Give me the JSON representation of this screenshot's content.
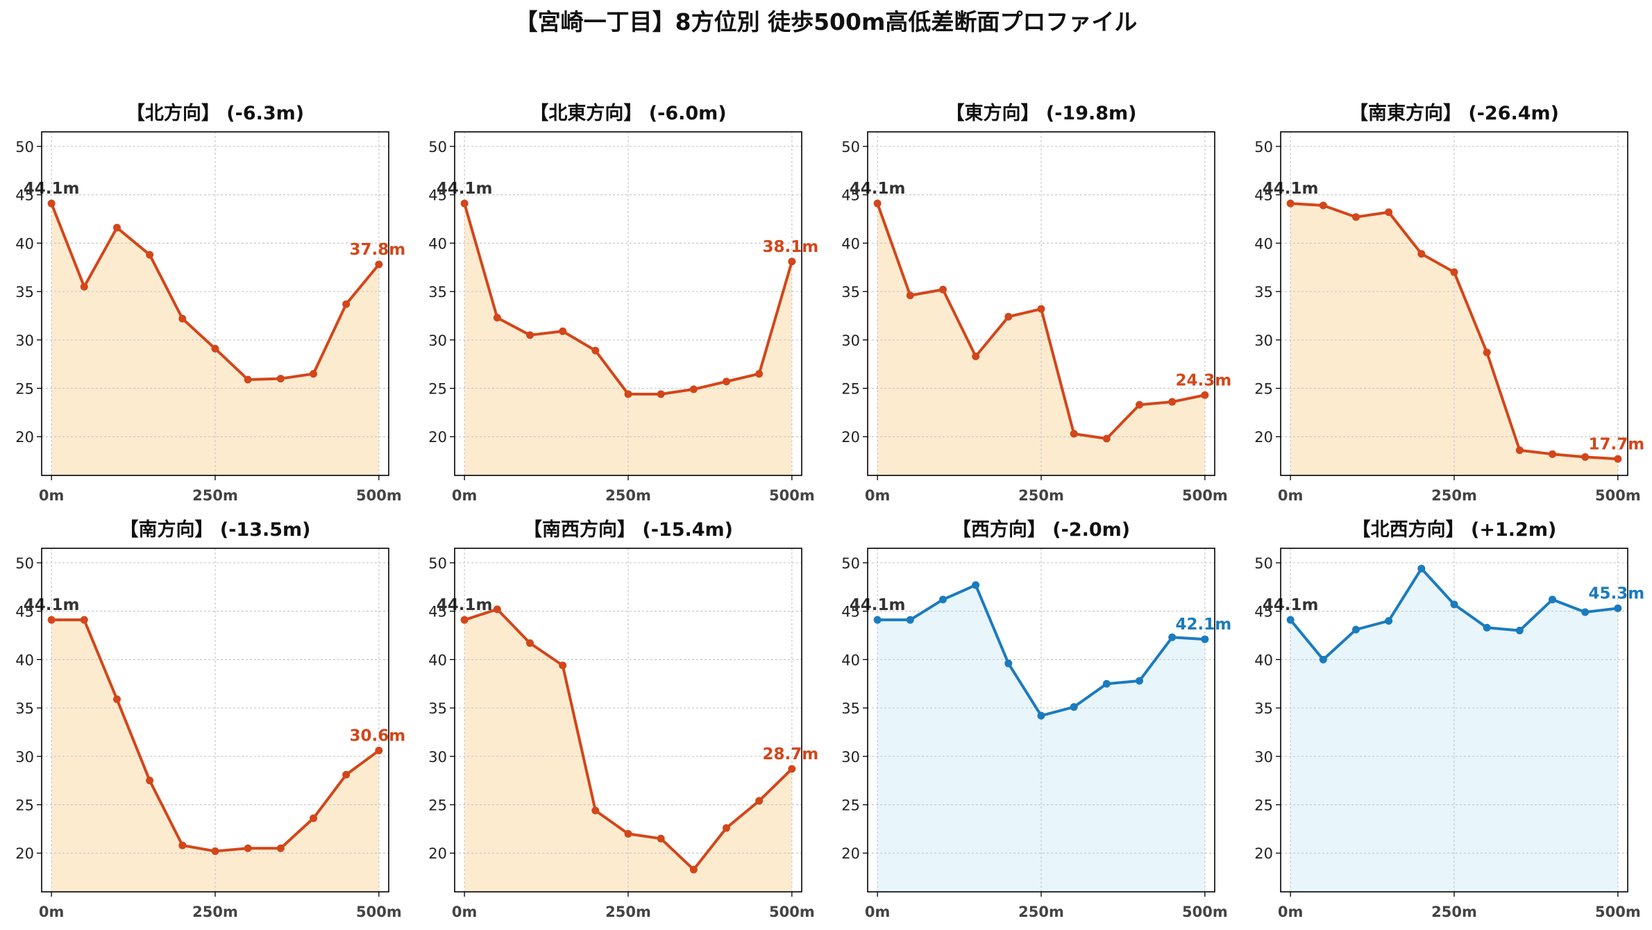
{
  "title": "【宮崎一丁目】8方位別 徒歩500m高低差断面プロファイル",
  "colors": {
    "down_line": "#d3461a",
    "down_fill": "#fdebd0",
    "up_line": "#1a7bbf",
    "up_fill": "#e8f5fb",
    "start_label": "#333333",
    "grid": "#c8c8c8",
    "tick_label": "#444444"
  },
  "chart_data": [
    {
      "type": "area",
      "title": "【北方向】 (-6.3m)",
      "trend": "down",
      "x": [
        0,
        50,
        100,
        150,
        200,
        250,
        300,
        350,
        400,
        450,
        500
      ],
      "y": [
        44.1,
        35.5,
        41.6,
        38.8,
        32.2,
        29.1,
        25.9,
        26.0,
        26.5,
        33.7,
        37.8
      ],
      "start_label": "44.1m",
      "end_label": "37.8m",
      "xticks": [
        "0m",
        "250m",
        "500m"
      ],
      "yticks": [
        20,
        25,
        30,
        35,
        40,
        45,
        50
      ],
      "xlim": [
        -15,
        515
      ],
      "ylim": [
        16,
        51.5
      ],
      "grid": true
    },
    {
      "type": "area",
      "title": "【北東方向】 (-6.0m)",
      "trend": "down",
      "x": [
        0,
        50,
        100,
        150,
        200,
        250,
        300,
        350,
        400,
        450,
        500
      ],
      "y": [
        44.1,
        32.3,
        30.5,
        30.9,
        28.9,
        24.4,
        24.4,
        24.9,
        25.7,
        26.5,
        38.1
      ],
      "start_label": "44.1m",
      "end_label": "38.1m",
      "xticks": [
        "0m",
        "250m",
        "500m"
      ],
      "yticks": [
        20,
        25,
        30,
        35,
        40,
        45,
        50
      ],
      "xlim": [
        -15,
        515
      ],
      "ylim": [
        16,
        51.5
      ],
      "grid": true
    },
    {
      "type": "area",
      "title": "【東方向】 (-19.8m)",
      "trend": "down",
      "x": [
        0,
        50,
        100,
        150,
        200,
        250,
        300,
        350,
        400,
        450,
        500
      ],
      "y": [
        44.1,
        34.6,
        35.2,
        28.3,
        32.4,
        33.2,
        20.3,
        19.8,
        23.3,
        23.6,
        24.3
      ],
      "start_label": "44.1m",
      "end_label": "24.3m",
      "xticks": [
        "0m",
        "250m",
        "500m"
      ],
      "yticks": [
        20,
        25,
        30,
        35,
        40,
        45,
        50
      ],
      "xlim": [
        -15,
        515
      ],
      "ylim": [
        16,
        51.5
      ],
      "grid": true
    },
    {
      "type": "area",
      "title": "【南東方向】 (-26.4m)",
      "trend": "down",
      "x": [
        0,
        50,
        100,
        150,
        200,
        250,
        300,
        350,
        400,
        450,
        500
      ],
      "y": [
        44.1,
        43.9,
        42.7,
        43.2,
        38.9,
        37.0,
        28.7,
        18.6,
        18.2,
        17.9,
        17.7
      ],
      "start_label": "44.1m",
      "end_label": "17.7m",
      "xticks": [
        "0m",
        "250m",
        "500m"
      ],
      "yticks": [
        20,
        25,
        30,
        35,
        40,
        45,
        50
      ],
      "xlim": [
        -15,
        515
      ],
      "ylim": [
        16,
        51.5
      ],
      "grid": true
    },
    {
      "type": "area",
      "title": "【南方向】 (-13.5m)",
      "trend": "down",
      "x": [
        0,
        50,
        100,
        150,
        200,
        250,
        300,
        350,
        400,
        450,
        500
      ],
      "y": [
        44.1,
        44.1,
        35.9,
        27.5,
        20.8,
        20.2,
        20.5,
        20.5,
        23.6,
        28.1,
        30.6
      ],
      "start_label": "44.1m",
      "end_label": "30.6m",
      "xticks": [
        "0m",
        "250m",
        "500m"
      ],
      "yticks": [
        20,
        25,
        30,
        35,
        40,
        45,
        50
      ],
      "xlim": [
        -15,
        515
      ],
      "ylim": [
        16,
        51.5
      ],
      "grid": true
    },
    {
      "type": "area",
      "title": "【南西方向】 (-15.4m)",
      "trend": "down",
      "x": [
        0,
        50,
        100,
        150,
        200,
        250,
        300,
        350,
        400,
        450,
        500
      ],
      "y": [
        44.1,
        45.2,
        41.7,
        39.4,
        24.4,
        22.0,
        21.5,
        18.3,
        22.6,
        25.4,
        28.7
      ],
      "start_label": "44.1m",
      "end_label": "28.7m",
      "xticks": [
        "0m",
        "250m",
        "500m"
      ],
      "yticks": [
        20,
        25,
        30,
        35,
        40,
        45,
        50
      ],
      "xlim": [
        -15,
        515
      ],
      "ylim": [
        16,
        51.5
      ],
      "grid": true
    },
    {
      "type": "area",
      "title": "【西方向】 (-2.0m)",
      "trend": "up",
      "x": [
        0,
        50,
        100,
        150,
        200,
        250,
        300,
        350,
        400,
        450,
        500
      ],
      "y": [
        44.1,
        44.1,
        46.2,
        47.7,
        39.6,
        34.2,
        35.1,
        37.5,
        37.8,
        42.3,
        42.1
      ],
      "start_label": "44.1m",
      "end_label": "42.1m",
      "xticks": [
        "0m",
        "250m",
        "500m"
      ],
      "yticks": [
        20,
        25,
        30,
        35,
        40,
        45,
        50
      ],
      "xlim": [
        -15,
        515
      ],
      "ylim": [
        16,
        51.5
      ],
      "grid": true
    },
    {
      "type": "area",
      "title": "【北西方向】 (+1.2m)",
      "trend": "up",
      "x": [
        0,
        50,
        100,
        150,
        200,
        250,
        300,
        350,
        400,
        450,
        500
      ],
      "y": [
        44.1,
        40.0,
        43.1,
        44.0,
        49.4,
        45.7,
        43.3,
        43.0,
        46.2,
        44.9,
        45.3
      ],
      "start_label": "44.1m",
      "end_label": "45.3m",
      "xticks": [
        "0m",
        "250m",
        "500m"
      ],
      "yticks": [
        20,
        25,
        30,
        35,
        40,
        45,
        50
      ],
      "xlim": [
        -15,
        515
      ],
      "ylim": [
        16,
        51.5
      ],
      "grid": true
    }
  ]
}
